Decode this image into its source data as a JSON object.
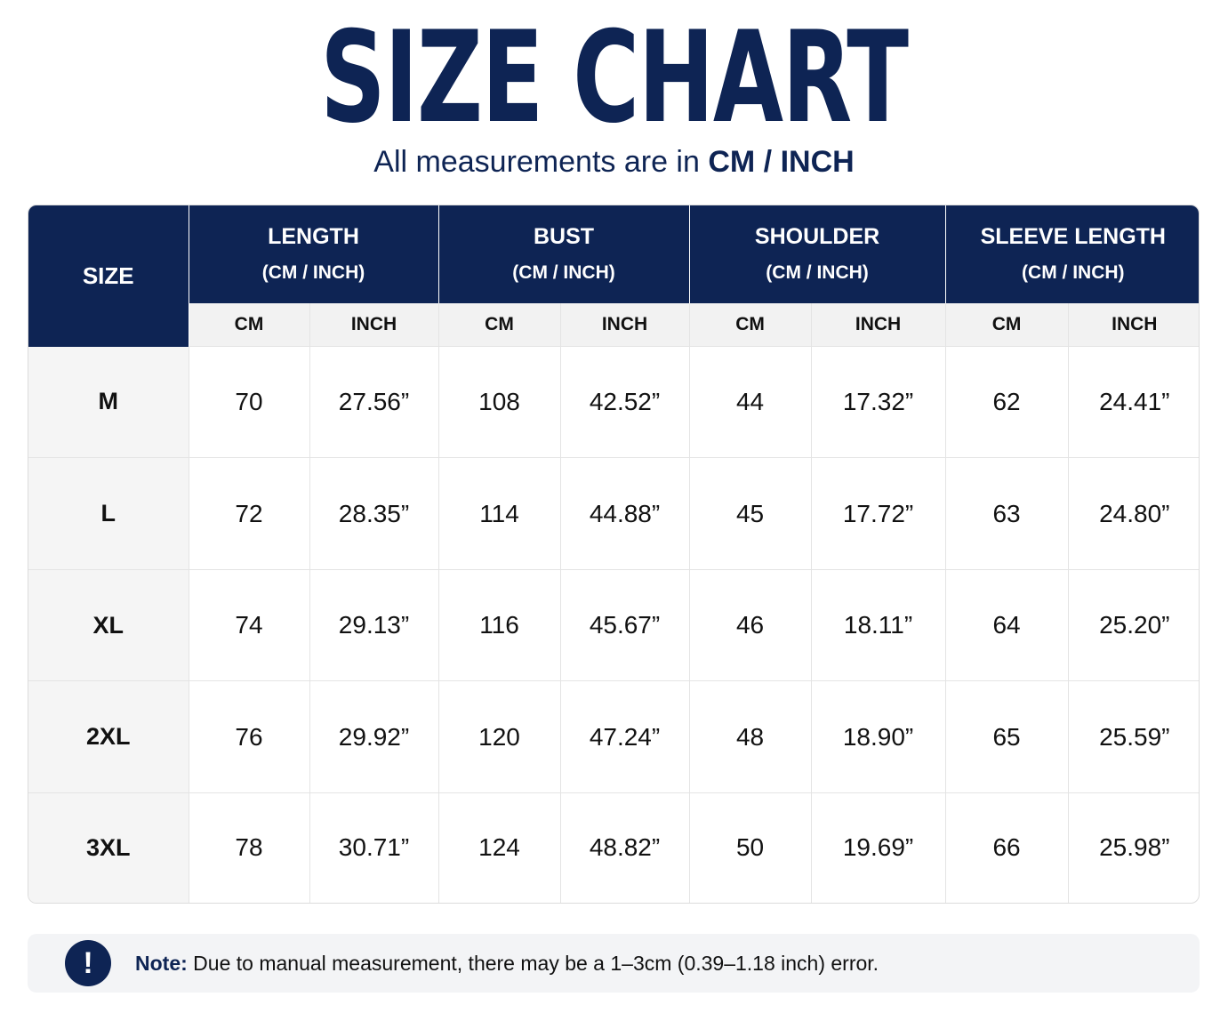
{
  "title": "SIZE CHART",
  "subtitle": {
    "prefix": "All measurements are in",
    "units": "CM / INCH"
  },
  "table": {
    "size_header": "SIZE",
    "groups": [
      {
        "name": "LENGTH",
        "unit": "(CM / INCH)"
      },
      {
        "name": "BUST",
        "unit": "(CM / INCH)"
      },
      {
        "name": "SHOULDER",
        "unit": "(CM / INCH)"
      },
      {
        "name": "SLEEVE LENGTH",
        "unit": "(CM / INCH)"
      }
    ],
    "sub_headers": [
      "CM",
      "INCH",
      "CM",
      "INCH",
      "CM",
      "INCH",
      "CM",
      "INCH"
    ],
    "rows": [
      {
        "size": "M",
        "values": [
          "70",
          "27.56”",
          "108",
          "42.52”",
          "44",
          "17.32”",
          "62",
          "24.41”"
        ]
      },
      {
        "size": "L",
        "values": [
          "72",
          "28.35”",
          "114",
          "44.88”",
          "45",
          "17.72”",
          "63",
          "24.80”"
        ]
      },
      {
        "size": "XL",
        "values": [
          "74",
          "29.13”",
          "116",
          "45.67”",
          "46",
          "18.11”",
          "64",
          "25.20”"
        ]
      },
      {
        "size": "2XL",
        "values": [
          "76",
          "29.92”",
          "120",
          "47.24”",
          "48",
          "18.90”",
          "65",
          "25.59”"
        ]
      },
      {
        "size": "3XL",
        "values": [
          "78",
          "30.71”",
          "124",
          "48.82”",
          "50",
          "19.69”",
          "66",
          "25.98”"
        ]
      }
    ]
  },
  "note": {
    "icon": "exclamation-icon",
    "icon_glyph": "!",
    "label": "Note:",
    "text": "Due to manual measurement, there may be a 1–3cm (0.39–1.18 inch) error."
  },
  "colors": {
    "navy": "#0e2454",
    "header_sub_bg": "#f2f2f2",
    "note_bg": "#f3f4f6"
  }
}
